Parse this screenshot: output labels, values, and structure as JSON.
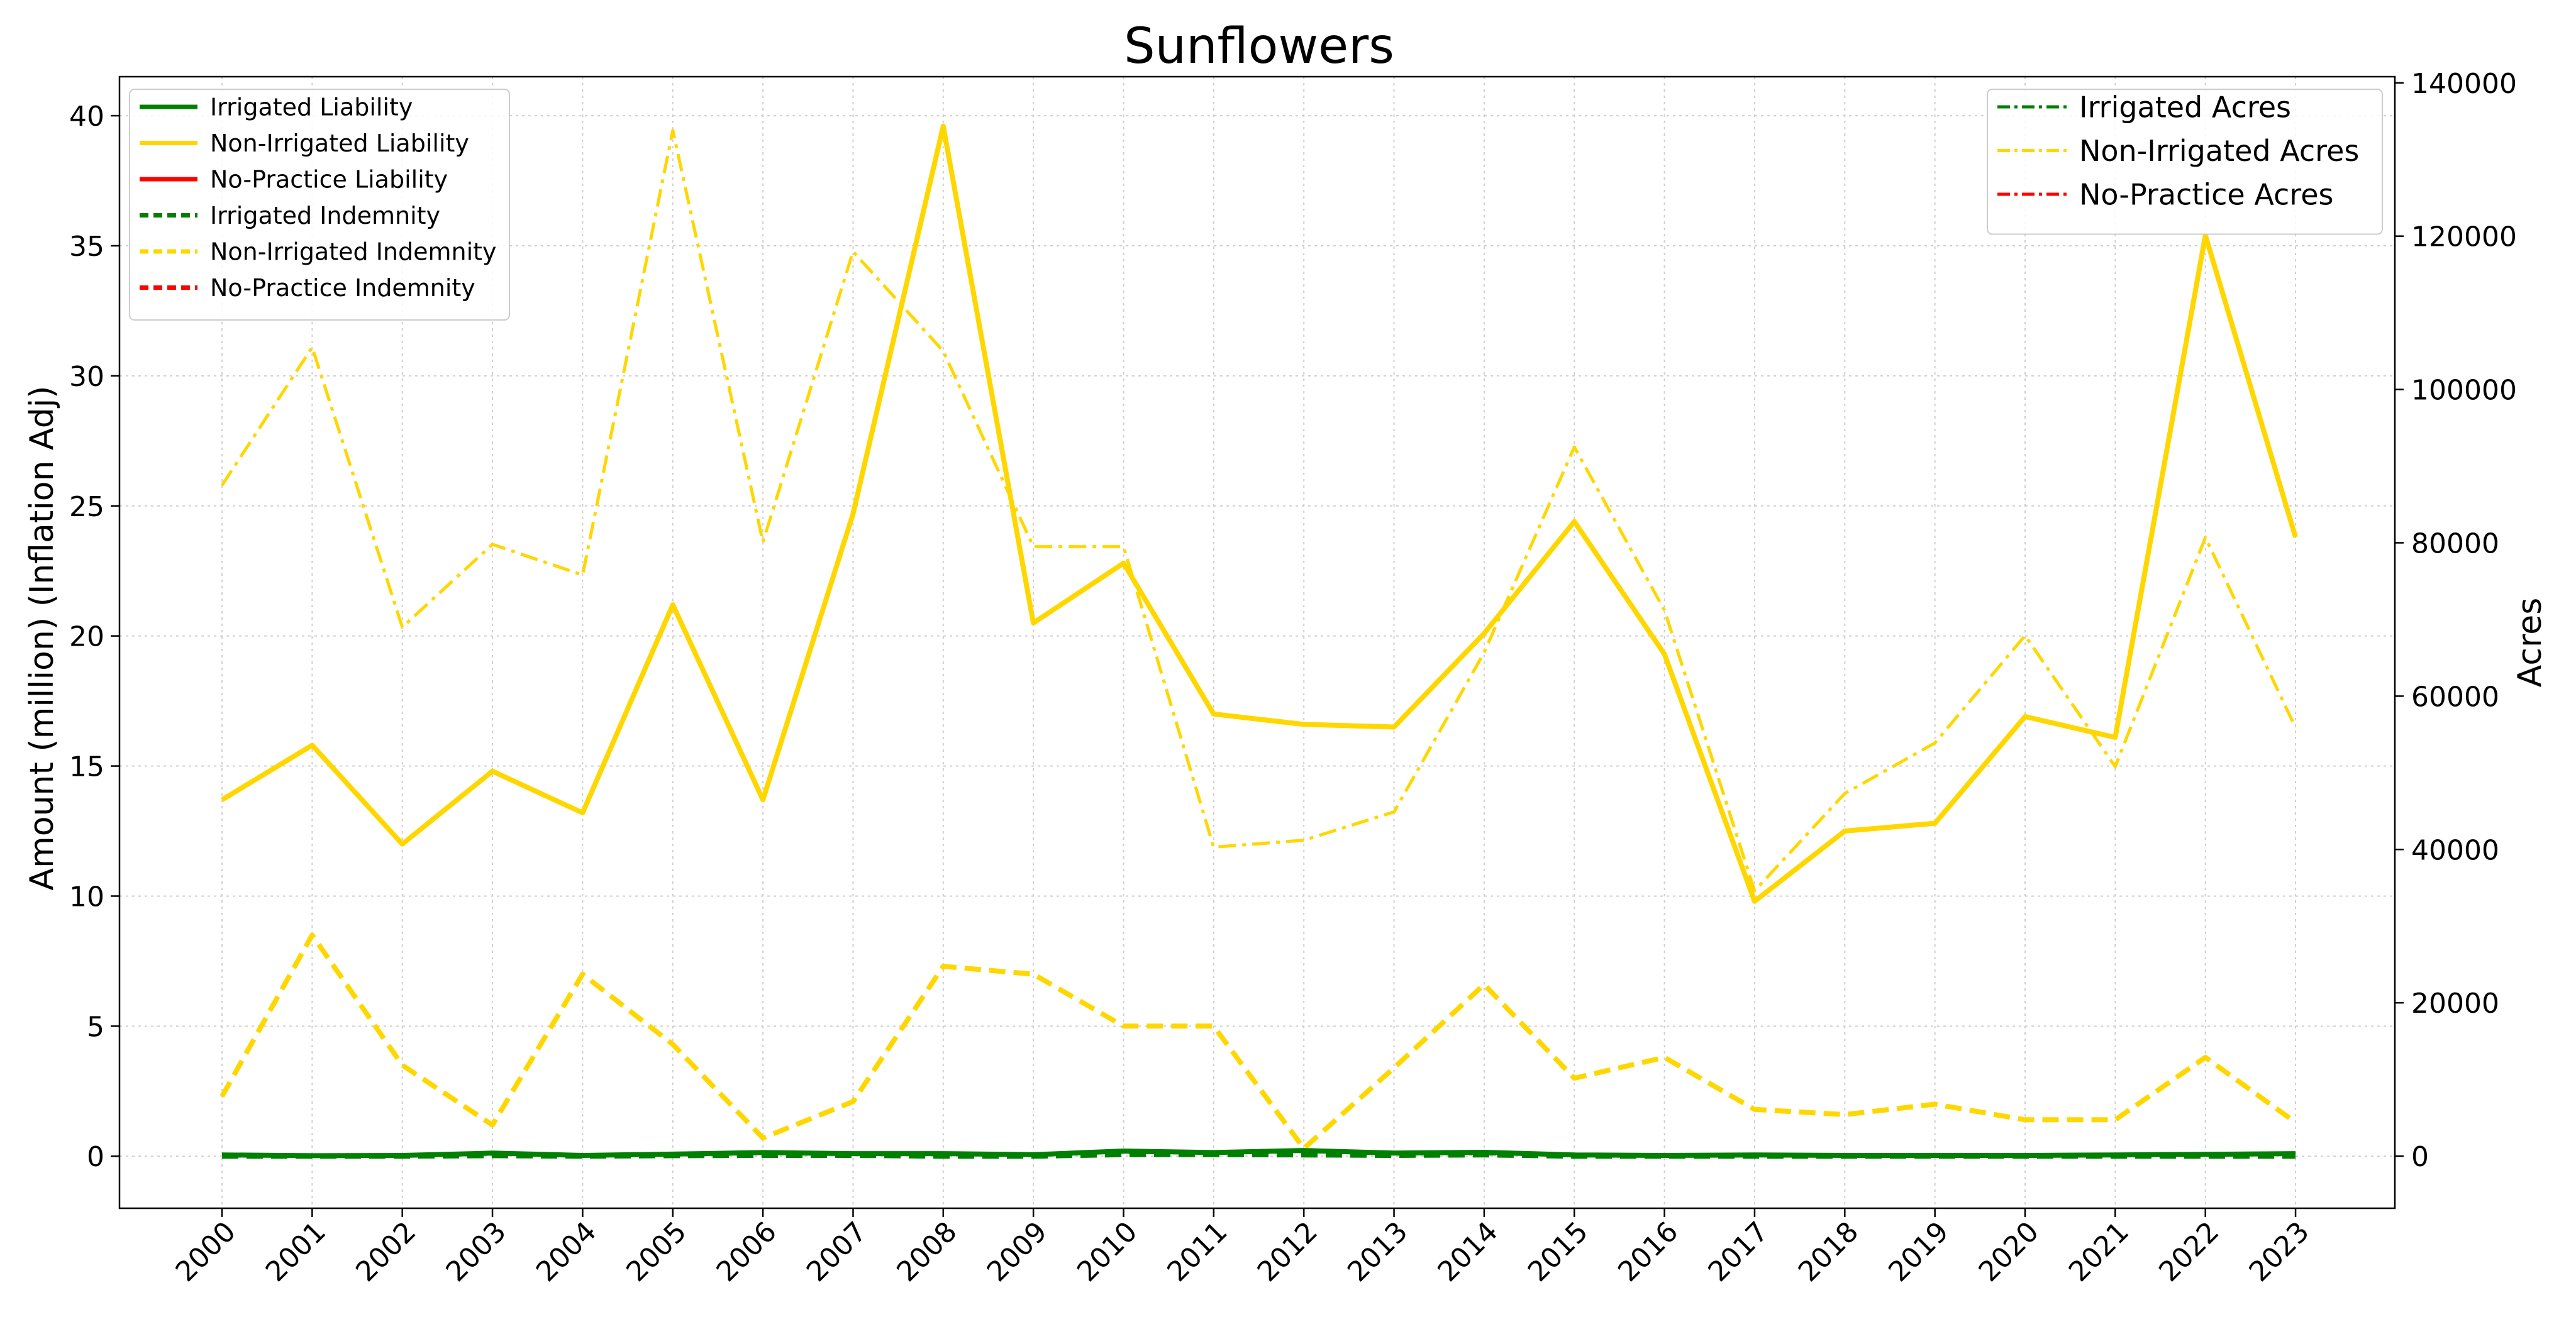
{
  "chart_data": {
    "type": "line",
    "title": "Sunflowers",
    "ylabel": "Amount (million) (Inflation Adj)",
    "y2label": "Acres",
    "x": [
      "2000",
      "2001",
      "2002",
      "2003",
      "2004",
      "2005",
      "2006",
      "2007",
      "2008",
      "2009",
      "2010",
      "2011",
      "2012",
      "2013",
      "2014",
      "2015",
      "2016",
      "2017",
      "2018",
      "2019",
      "2020",
      "2021",
      "2022",
      "2023"
    ],
    "ylim": [
      -2,
      41.5
    ],
    "y2lim": [
      -6800,
      140800
    ],
    "yticks": [
      0,
      5,
      10,
      15,
      20,
      25,
      30,
      35,
      40
    ],
    "y2ticks": [
      0,
      20000,
      40000,
      60000,
      80000,
      100000,
      120000,
      140000
    ],
    "grid": true,
    "legend_left_placement": "upper-left",
    "legend_right_placement": "upper-right",
    "series_left": [
      {
        "name": "Irrigated Liability",
        "color": "#008000",
        "style": "solid",
        "values": [
          0.05,
          0.02,
          0.03,
          0.12,
          0.03,
          0.08,
          0.14,
          0.1,
          0.1,
          0.06,
          0.2,
          0.14,
          0.22,
          0.12,
          0.15,
          0.05,
          0.03,
          0.05,
          0.03,
          0.03,
          0.03,
          0.05,
          0.07,
          0.1
        ]
      },
      {
        "name": "Non-Irrigated Liability",
        "color": "#FFD700",
        "style": "solid",
        "values": [
          13.7,
          15.8,
          12.0,
          14.8,
          13.2,
          21.2,
          13.7,
          24.7,
          39.6,
          20.5,
          22.8,
          17.0,
          16.6,
          16.5,
          20.1,
          24.4,
          19.3,
          9.8,
          12.5,
          12.8,
          16.9,
          16.1,
          35.4,
          23.8
        ]
      },
      {
        "name": "No-Practice Liability",
        "color": "#ff0000",
        "style": "solid",
        "values": []
      },
      {
        "name": "Irrigated Indemnity",
        "color": "#008000",
        "style": "dashed",
        "values": [
          0,
          0,
          0,
          0.02,
          0,
          0.02,
          0.03,
          0.03,
          0,
          0,
          0.06,
          0.06,
          0.05,
          0.03,
          0.05,
          0,
          0,
          0,
          0,
          0,
          0,
          0,
          0,
          0
        ]
      },
      {
        "name": "Non-Irrigated Indemnity",
        "color": "#FFD700",
        "style": "dashed",
        "values": [
          2.3,
          8.5,
          3.5,
          1.2,
          7.0,
          4.3,
          0.7,
          2.1,
          7.3,
          7.0,
          5.0,
          5.0,
          0.3,
          3.4,
          6.6,
          3.0,
          3.8,
          1.8,
          1.6,
          2.0,
          1.4,
          1.4,
          3.8,
          1.3
        ]
      },
      {
        "name": "No-Practice Indemnity",
        "color": "#ff0000",
        "style": "dashed",
        "values": []
      }
    ],
    "series_right": [
      {
        "name": "Irrigated Acres",
        "color": "#008000",
        "style": "dashdot",
        "values": [
          100,
          80,
          90,
          300,
          100,
          250,
          350,
          300,
          250,
          200,
          500,
          400,
          600,
          350,
          300,
          150,
          100,
          150,
          100,
          100,
          100,
          150,
          200,
          300
        ]
      },
      {
        "name": "Non-Irrigated Acres",
        "color": "#FFD700",
        "style": "dashdot",
        "values": [
          87500,
          105500,
          69000,
          79800,
          75800,
          133800,
          80100,
          118000,
          105000,
          79500,
          79500,
          40300,
          41200,
          44900,
          65700,
          92500,
          71200,
          34600,
          47300,
          53900,
          67900,
          50800,
          80700,
          55900
        ]
      },
      {
        "name": "No-Practice Acres",
        "color": "#ff0000",
        "style": "dashdot",
        "values": []
      }
    ]
  }
}
